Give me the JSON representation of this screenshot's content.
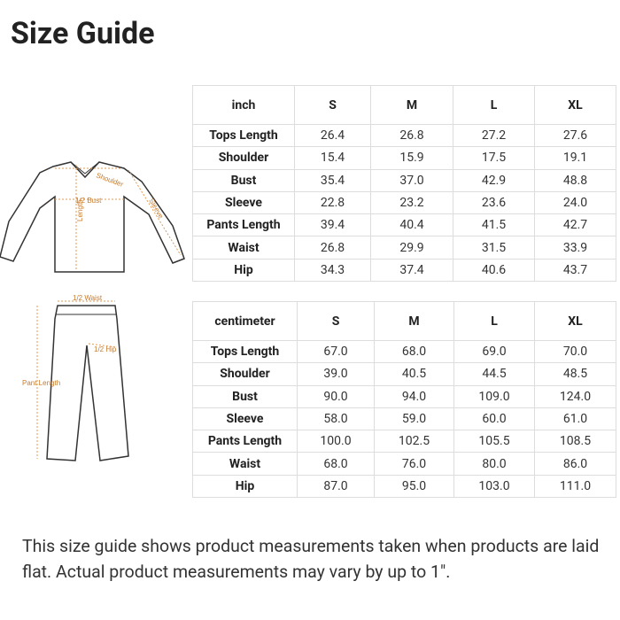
{
  "header": {
    "title": "Size Guide"
  },
  "illustration": {
    "top_labels": [
      "Shoulder",
      "1/2 Bust",
      "Length",
      "Sleeve"
    ],
    "bottom_labels": [
      "1/2 Waist",
      "1/2 Hip",
      "Pant Length"
    ]
  },
  "tables": [
    {
      "headers": [
        "inch",
        "S",
        "M",
        "L",
        "XL"
      ],
      "rows": [
        [
          "Tops Length",
          "26.4",
          "26.8",
          "27.2",
          "27.6"
        ],
        [
          "Shoulder",
          "15.4",
          "15.9",
          "17.5",
          "19.1"
        ],
        [
          "Bust",
          "35.4",
          "37.0",
          "42.9",
          "48.8"
        ],
        [
          "Sleeve",
          "22.8",
          "23.2",
          "23.6",
          "24.0"
        ],
        [
          "Pants Length",
          "39.4",
          "40.4",
          "41.5",
          "42.7"
        ],
        [
          "Waist",
          "26.8",
          "29.9",
          "31.5",
          "33.9"
        ],
        [
          "Hip",
          "34.3",
          "37.4",
          "40.6",
          "43.7"
        ]
      ]
    },
    {
      "headers": [
        "centimeter",
        "S",
        "M",
        "L",
        "XL"
      ],
      "rows": [
        [
          "Tops Length",
          "67.0",
          "68.0",
          "69.0",
          "70.0"
        ],
        [
          "Shoulder",
          "39.0",
          "40.5",
          "44.5",
          "48.5"
        ],
        [
          "Bust",
          "90.0",
          "94.0",
          "109.0",
          "124.0"
        ],
        [
          "Sleeve",
          "58.0",
          "59.0",
          "60.0",
          "61.0"
        ],
        [
          "Pants Length",
          "100.0",
          "102.5",
          "105.5",
          "108.5"
        ],
        [
          "Waist",
          "68.0",
          "76.0",
          "80.0",
          "86.0"
        ],
        [
          "Hip",
          "87.0",
          "95.0",
          "103.0",
          "111.0"
        ]
      ]
    }
  ],
  "footer": {
    "text": "This size guide shows product measurements taken when products are laid flat. Actual product measurements may vary by up to 1\"."
  }
}
